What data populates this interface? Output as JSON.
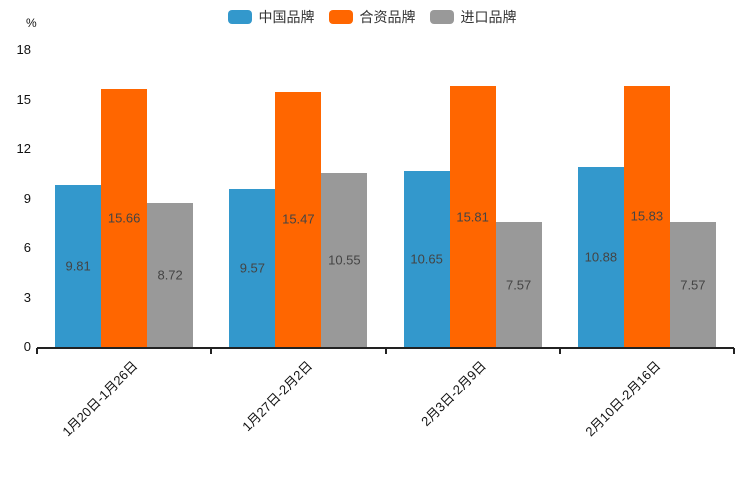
{
  "chart_data": {
    "type": "bar",
    "title": "",
    "xlabel": "",
    "ylabel": "%",
    "ylim": [
      0,
      18
    ],
    "yticks": [
      0,
      3,
      6,
      9,
      12,
      15,
      18
    ],
    "grid": false,
    "legend_position": "top-center",
    "value_labels": "inside-center",
    "categories": [
      "1月20日-1月26日",
      "1月27日-2月2日",
      "2月3日-2月9日",
      "2月10日-2月16日"
    ],
    "series": [
      {
        "name": "中国品牌",
        "color": "#3398CC",
        "values": [
          9.81,
          9.57,
          10.65,
          10.88
        ]
      },
      {
        "name": "合资品牌",
        "color": "#FF6600",
        "values": [
          15.66,
          15.47,
          15.81,
          15.83
        ]
      },
      {
        "name": "进口品牌",
        "color": "#999999",
        "values": [
          8.72,
          10.55,
          7.57,
          7.57
        ]
      }
    ]
  },
  "colors": {
    "axis_line": "#222222",
    "tick_text": "#111111",
    "bar_value_text": "#444444",
    "legend_text": "#333333",
    "background": "#ffffff"
  }
}
